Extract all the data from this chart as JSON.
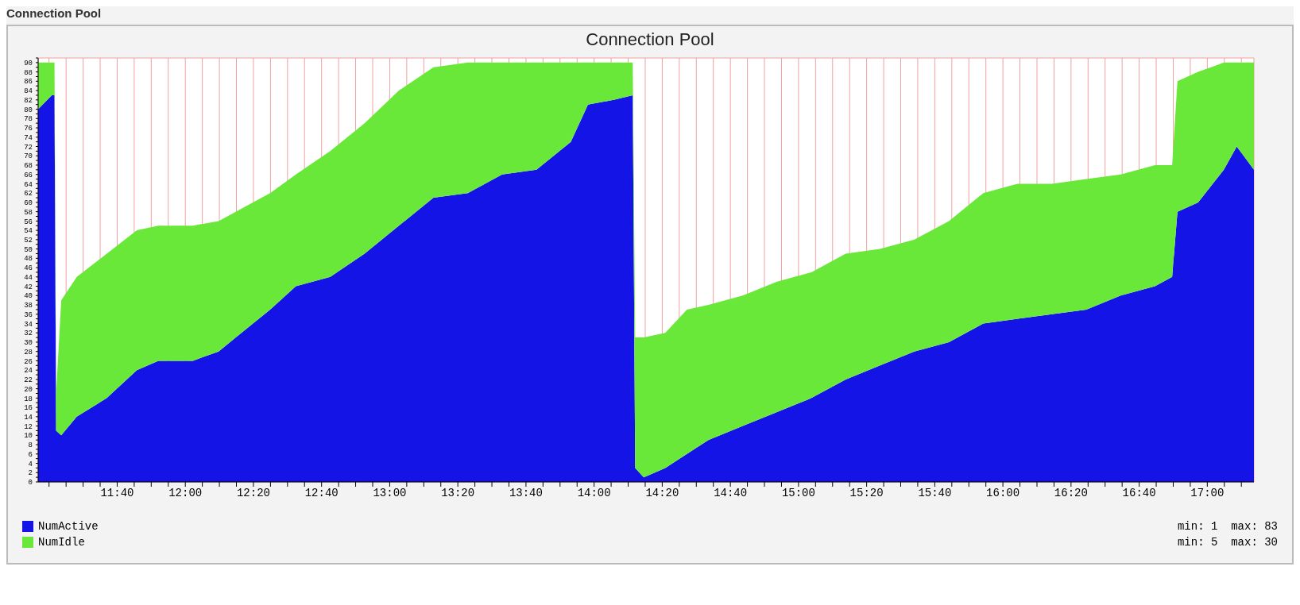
{
  "chart_data": {
    "type": "area",
    "stacked": true,
    "title": "Connection Pool",
    "annotations": [
      "Connection Pool",
      "min: 1  max: 83",
      "min: 5  max: 30"
    ],
    "x": [
      11.28,
      11.347,
      11.36,
      11.368,
      11.393,
      11.469,
      11.616,
      11.763,
      11.868,
      12.037,
      12.163,
      12.247,
      12.415,
      12.541,
      12.709,
      12.877,
      13.045,
      13.214,
      13.382,
      13.55,
      13.718,
      13.886,
      13.97,
      14.096,
      14.189,
      14.201,
      14.243,
      14.348,
      14.454,
      14.559,
      14.727,
      14.895,
      15.063,
      15.231,
      15.399,
      15.567,
      15.736,
      15.904,
      16.072,
      16.24,
      16.408,
      16.576,
      16.744,
      16.828,
      16.854,
      16.955,
      17.081,
      17.144,
      17.228
    ],
    "series": [
      {
        "name": "NumActive",
        "color": "#1414e6",
        "values": [
          80,
          83,
          83,
          11,
          10,
          14,
          18,
          24,
          26,
          26,
          28,
          31,
          37,
          42,
          44,
          49,
          55,
          61,
          62,
          66,
          67,
          73,
          81,
          82,
          83,
          3,
          1,
          3,
          6,
          9,
          12,
          15,
          18,
          22,
          25,
          28,
          30,
          34,
          35,
          36,
          37,
          40,
          42,
          44,
          58,
          60,
          67,
          72,
          67
        ]
      },
      {
        "name": "NumIdle",
        "color": "#6ae83a",
        "values": [
          10,
          7,
          7,
          8,
          29,
          30,
          31,
          30,
          29,
          29,
          28,
          27,
          25,
          24,
          27,
          28,
          29,
          28,
          28,
          24,
          23,
          17,
          9,
          8,
          7,
          28,
          30,
          29,
          31,
          29,
          28,
          28,
          27,
          27,
          25,
          24,
          26,
          28,
          29,
          28,
          28,
          26,
          26,
          24,
          28,
          28,
          23,
          18,
          23
        ]
      }
    ],
    "xlim": [
      11.28,
      17.228
    ],
    "xticks": [
      {
        "value": 11.3333,
        "label": null
      },
      {
        "value": 11.4167,
        "label": null
      },
      {
        "value": 11.5,
        "label": null
      },
      {
        "value": 11.5833,
        "label": null
      },
      {
        "value": 11.6667,
        "label": "11:40"
      },
      {
        "value": 11.75,
        "label": null
      },
      {
        "value": 11.8333,
        "label": null
      },
      {
        "value": 11.9167,
        "label": null
      },
      {
        "value": 12,
        "label": "12:00"
      },
      {
        "value": 12.0833,
        "label": null
      },
      {
        "value": 12.1667,
        "label": null
      },
      {
        "value": 12.25,
        "label": null
      },
      {
        "value": 12.3333,
        "label": "12:20"
      },
      {
        "value": 12.4167,
        "label": null
      },
      {
        "value": 12.5,
        "label": null
      },
      {
        "value": 12.5833,
        "label": null
      },
      {
        "value": 12.6667,
        "label": "12:40"
      },
      {
        "value": 12.75,
        "label": null
      },
      {
        "value": 12.8333,
        "label": null
      },
      {
        "value": 12.9167,
        "label": null
      },
      {
        "value": 13,
        "label": "13:00"
      },
      {
        "value": 13.0833,
        "label": null
      },
      {
        "value": 13.1667,
        "label": null
      },
      {
        "value": 13.25,
        "label": null
      },
      {
        "value": 13.3333,
        "label": "13:20"
      },
      {
        "value": 13.4167,
        "label": null
      },
      {
        "value": 13.5,
        "label": null
      },
      {
        "value": 13.5833,
        "label": null
      },
      {
        "value": 13.6667,
        "label": "13:40"
      },
      {
        "value": 13.75,
        "label": null
      },
      {
        "value": 13.8333,
        "label": null
      },
      {
        "value": 13.9167,
        "label": null
      },
      {
        "value": 14,
        "label": "14:00"
      },
      {
        "value": 14.0833,
        "label": null
      },
      {
        "value": 14.1667,
        "label": null
      },
      {
        "value": 14.25,
        "label": null
      },
      {
        "value": 14.3333,
        "label": "14:20"
      },
      {
        "value": 14.4167,
        "label": null
      },
      {
        "value": 14.5,
        "label": null
      },
      {
        "value": 14.5833,
        "label": null
      },
      {
        "value": 14.6667,
        "label": "14:40"
      },
      {
        "value": 14.75,
        "label": null
      },
      {
        "value": 14.8333,
        "label": null
      },
      {
        "value": 14.9167,
        "label": null
      },
      {
        "value": 15,
        "label": "15:00"
      },
      {
        "value": 15.0833,
        "label": null
      },
      {
        "value": 15.1667,
        "label": null
      },
      {
        "value": 15.25,
        "label": null
      },
      {
        "value": 15.3333,
        "label": "15:20"
      },
      {
        "value": 15.4167,
        "label": null
      },
      {
        "value": 15.5,
        "label": null
      },
      {
        "value": 15.5833,
        "label": null
      },
      {
        "value": 15.6667,
        "label": "15:40"
      },
      {
        "value": 15.75,
        "label": null
      },
      {
        "value": 15.8333,
        "label": null
      },
      {
        "value": 15.9167,
        "label": null
      },
      {
        "value": 16,
        "label": "16:00"
      },
      {
        "value": 16.0833,
        "label": null
      },
      {
        "value": 16.1667,
        "label": null
      },
      {
        "value": 16.25,
        "label": null
      },
      {
        "value": 16.3333,
        "label": "16:20"
      },
      {
        "value": 16.4167,
        "label": null
      },
      {
        "value": 16.5,
        "label": null
      },
      {
        "value": 16.5833,
        "label": null
      },
      {
        "value": 16.6667,
        "label": "16:40"
      },
      {
        "value": 16.75,
        "label": null
      },
      {
        "value": 16.8333,
        "label": null
      },
      {
        "value": 16.9167,
        "label": null
      },
      {
        "value": 17,
        "label": "17:00"
      },
      {
        "value": 17.0833,
        "label": null
      },
      {
        "value": 17.1667,
        "label": null
      }
    ],
    "ylim": [
      0,
      91
    ],
    "yticks": [
      0,
      {
        "value": 1,
        "label": null
      },
      2,
      {
        "value": 3,
        "label": null
      },
      4,
      {
        "value": 5,
        "label": null
      },
      6,
      {
        "value": 7,
        "label": null
      },
      8,
      {
        "value": 9,
        "label": null
      },
      10,
      {
        "value": 11,
        "label": null
      },
      12,
      {
        "value": 13,
        "label": null
      },
      14,
      {
        "value": 15,
        "label": null
      },
      16,
      {
        "value": 17,
        "label": null
      },
      18,
      {
        "value": 19,
        "label": null
      },
      20,
      {
        "value": 21,
        "label": null
      },
      22,
      {
        "value": 23,
        "label": null
      },
      24,
      {
        "value": 25,
        "label": null
      },
      26,
      {
        "value": 27,
        "label": null
      },
      28,
      {
        "value": 29,
        "label": null
      },
      30,
      {
        "value": 31,
        "label": null
      },
      32,
      {
        "value": 33,
        "label": null
      },
      34,
      {
        "value": 35,
        "label": null
      },
      36,
      {
        "value": 37,
        "label": null
      },
      38,
      {
        "value": 39,
        "label": null
      },
      40,
      {
        "value": 41,
        "label": null
      },
      42,
      {
        "value": 43,
        "label": null
      },
      44,
      {
        "value": 45,
        "label": null
      },
      46,
      {
        "value": 47,
        "label": null
      },
      48,
      {
        "value": 49,
        "label": null
      },
      50,
      {
        "value": 51,
        "label": null
      },
      52,
      {
        "value": 53,
        "label": null
      },
      54,
      {
        "value": 55,
        "label": null
      },
      56,
      {
        "value": 57,
        "label": null
      },
      58,
      {
        "value": 59,
        "label": null
      },
      60,
      {
        "value": 61,
        "label": null
      },
      62,
      {
        "value": 63,
        "label": null
      },
      64,
      {
        "value": 65,
        "label": null
      },
      66,
      {
        "value": 67,
        "label": null
      },
      68,
      {
        "value": 69,
        "label": null
      },
      70,
      {
        "value": 71,
        "label": null
      },
      72,
      {
        "value": 73,
        "label": null
      },
      74,
      {
        "value": 75,
        "label": null
      },
      76,
      {
        "value": 77,
        "label": null
      },
      78,
      {
        "value": 79,
        "label": null
      },
      80,
      {
        "value": 81,
        "label": null
      },
      82,
      {
        "value": 83,
        "label": null
      },
      84,
      {
        "value": 85,
        "label": null
      },
      86,
      {
        "value": 87,
        "label": null
      },
      88,
      {
        "value": 89,
        "label": null
      },
      90,
      {
        "value": 91,
        "label": null
      }
    ],
    "grid": true,
    "legend": "bottom left"
  }
}
